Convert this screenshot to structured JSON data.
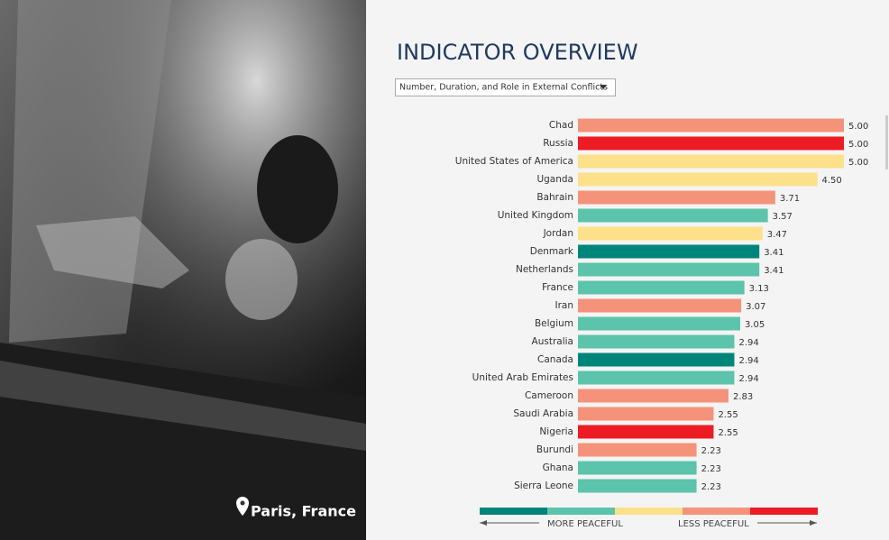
{
  "photo": {
    "caption": "Paris, France"
  },
  "chart_data": {
    "type": "bar",
    "orientation": "horizontal",
    "title": "INDICATOR OVERVIEW",
    "dropdown": "Number, Duration, and Role in External Conflicts",
    "categories": [
      "Chad",
      "Russia",
      "United States of America",
      "Uganda",
      "Bahrain",
      "United Kingdom",
      "Jordan",
      "Denmark",
      "Netherlands",
      "France",
      "Iran",
      "Belgium",
      "Australia",
      "Canada",
      "United Arab Emirates",
      "Cameroon",
      "Saudi Arabia",
      "Nigeria",
      "Burundi",
      "Ghana",
      "Sierra Leone"
    ],
    "values": [
      5,
      5,
      5,
      4.5,
      3.71,
      3.57,
      3.47,
      3.41,
      3.41,
      3.13,
      3.07,
      3.05,
      2.94,
      2.94,
      2.94,
      2.83,
      2.55,
      2.55,
      2.23,
      2.23,
      2.23
    ],
    "value_labels": [
      "5.00",
      "5.00",
      "5.00",
      "4.50",
      "3.71",
      "3.57",
      "3.47",
      "3.41",
      "3.41",
      "3.13",
      "3.07",
      "3.05",
      "2.94",
      "2.94",
      "2.94",
      "2.83",
      "2.55",
      "2.55",
      "2.23",
      "2.23",
      "2.23"
    ],
    "colors": [
      "#f4937a",
      "#ed1c24",
      "#fde08a",
      "#fde08a",
      "#f4937a",
      "#5bc4aa",
      "#fde08a",
      "#00857a",
      "#5bc4aa",
      "#5bc4aa",
      "#f4937a",
      "#5bc4aa",
      "#5bc4aa",
      "#00857a",
      "#5bc4aa",
      "#f4937a",
      "#f4937a",
      "#ed1c24",
      "#f4937a",
      "#5bc4aa",
      "#5bc4aa"
    ],
    "xlim": [
      0,
      5
    ],
    "legend": {
      "colors": [
        "#00857a",
        "#5bc4aa",
        "#fde08a",
        "#f4937a",
        "#ed1c24"
      ],
      "left_label": "MORE PEACEFUL",
      "right_label": "LESS PEACEFUL"
    }
  }
}
